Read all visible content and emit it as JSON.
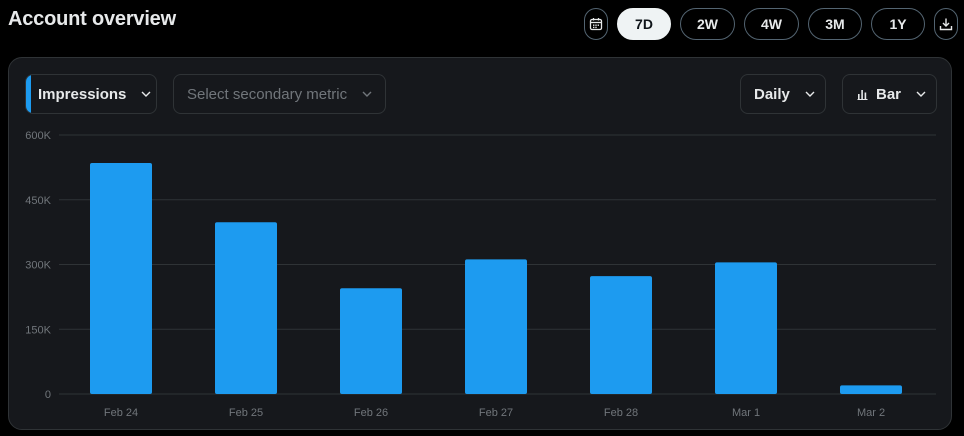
{
  "header": {
    "title": "Account overview"
  },
  "ranges": [
    {
      "label": "7D",
      "active": true
    },
    {
      "label": "2W",
      "active": false
    },
    {
      "label": "4W",
      "active": false
    },
    {
      "label": "3M",
      "active": false
    },
    {
      "label": "1Y",
      "active": false
    }
  ],
  "controls": {
    "primary_metric": "Impressions",
    "secondary_metric_placeholder": "Select secondary metric",
    "interval": "Daily",
    "chart_type_label": "Bar"
  },
  "colors": {
    "accent": "#1d9bf0",
    "active_range_bg": "#eff3f4"
  },
  "icons": {
    "date": "calendar-icon",
    "export": "download-icon",
    "chart_type": "bar-chart-icon",
    "dropdown": "chevron-down-icon"
  },
  "chart_data": {
    "type": "bar",
    "categories": [
      "Feb 24",
      "Feb 25",
      "Feb 26",
      "Feb 27",
      "Feb 28",
      "Mar 1",
      "Mar 2"
    ],
    "series": [
      {
        "name": "Impressions",
        "values": [
          535000,
          398000,
          245000,
          312000,
          273000,
          305000,
          20000
        ]
      }
    ],
    "y_ticks": [
      "0",
      "150K",
      "300K",
      "450K",
      "600K"
    ],
    "ylim": [
      0,
      600000
    ],
    "grid": true,
    "legend": "none"
  }
}
